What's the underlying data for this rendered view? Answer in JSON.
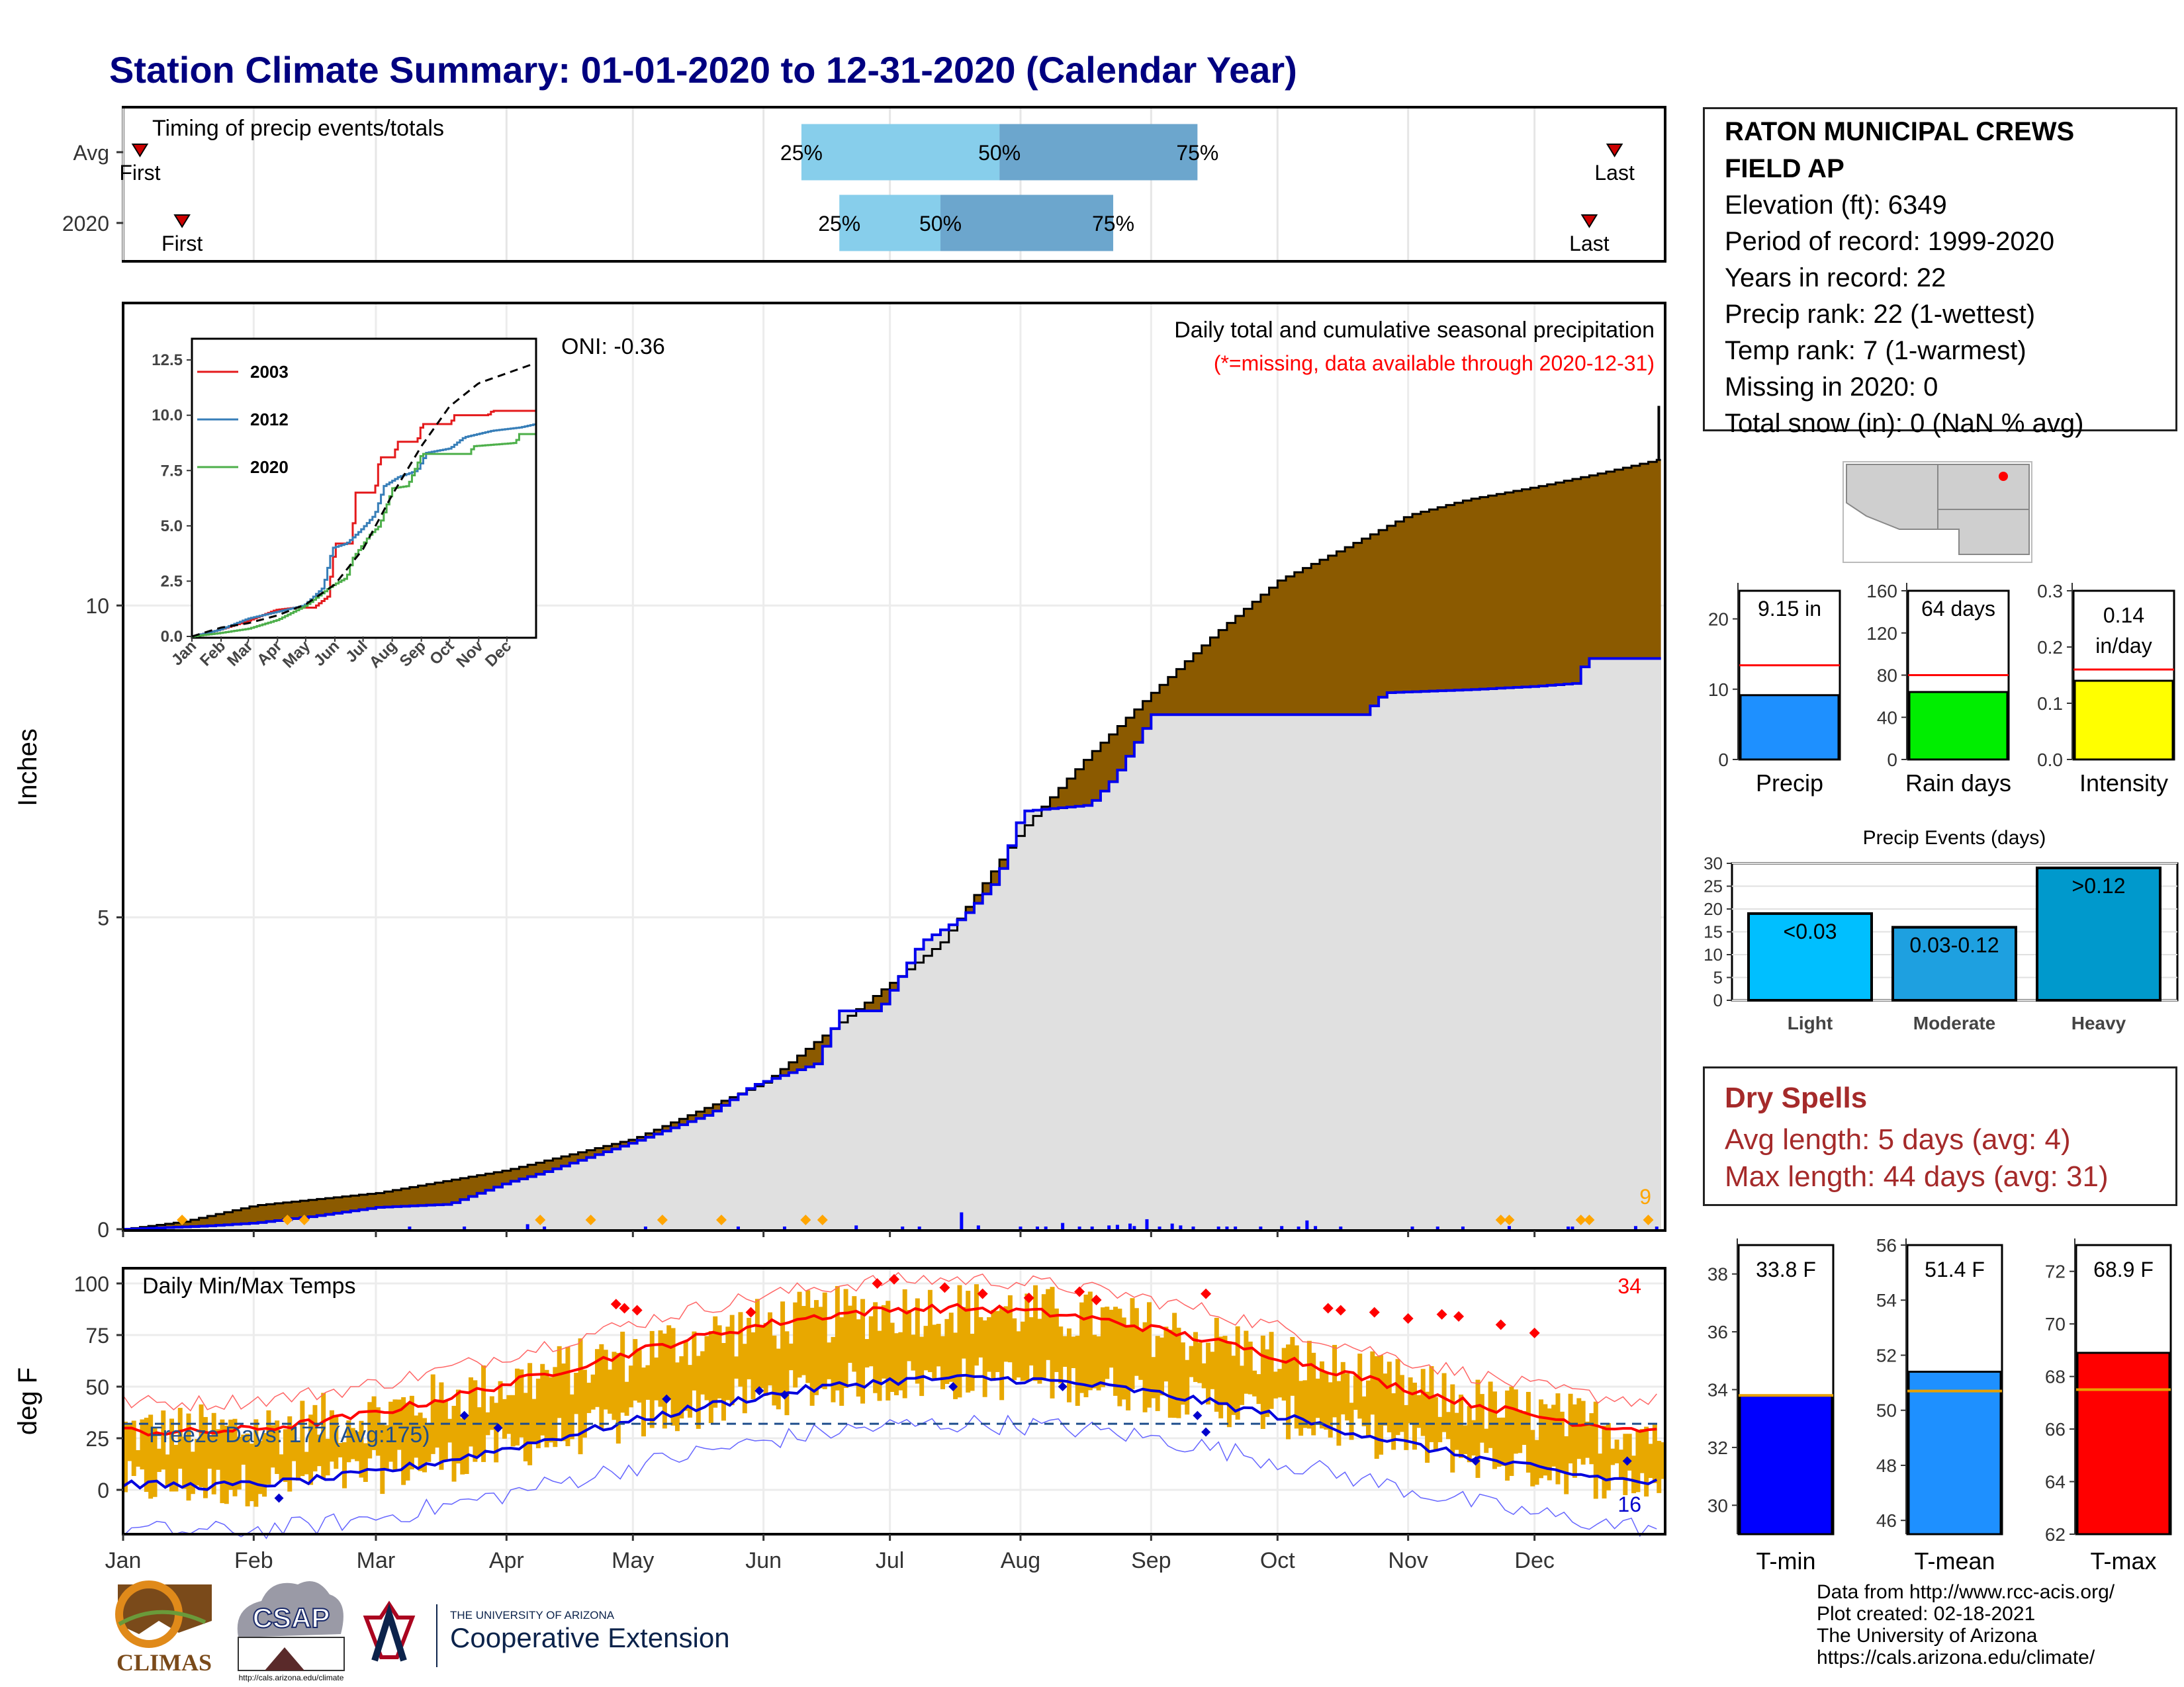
{
  "title": "Station Climate Summary: 01-01-2020 to 12-31-2020 (Calendar Year)",
  "timing": {
    "label": "Timing of precip events/totals",
    "rows": [
      {
        "name": "Avg",
        "first_label": "First",
        "last_label": "Last",
        "first_doy": 5,
        "last_doy": 355,
        "p25_doy": 162,
        "p50_doy": 209,
        "p75_doy": 256,
        "p25_label": "25%",
        "p50_label": "50%",
        "p75_label": "75%"
      },
      {
        "name": "2020",
        "first_label": "First",
        "last_label": "Last",
        "first_doy": 15,
        "last_doy": 349,
        "p25_doy": 171,
        "p50_doy": 195,
        "p75_doy": 236,
        "p25_label": "25%",
        "p50_label": "50%",
        "p75_label": "75%"
      }
    ],
    "colors": {
      "light": "#87ceeb",
      "dark": "#6ca6cd",
      "marker": "#cc0000"
    }
  },
  "precip_panel": {
    "ylabel": "Inches",
    "oni": "ONI: -0.36",
    "caption": "Daily total and cumulative seasonal precipitation",
    "missing_note": "(*=missing, data available through 2020-12-31)",
    "corner_count": "9",
    "yticks": [
      "0",
      "5",
      "10"
    ],
    "months": [
      "Jan",
      "Feb",
      "Mar",
      "Apr",
      "May",
      "Jun",
      "Jul",
      "Aug",
      "Sep",
      "Oct",
      "Nov",
      "Dec"
    ],
    "colors": {
      "deficit": "#8b5a00",
      "observed_fill": "#e0e0e0",
      "observed_line": "#0000ee",
      "bars": "#0000ff",
      "dots": "#ffa500"
    }
  },
  "inset": {
    "yticks": [
      "0.0",
      "2.5",
      "5.0",
      "7.5",
      "10.0",
      "12.5"
    ],
    "months": [
      "Jan",
      "Feb",
      "Mar",
      "Apr",
      "May",
      "Jun",
      "Jul",
      "Aug",
      "Sep",
      "Oct",
      "Nov",
      "Dec"
    ],
    "legend": [
      {
        "label": "2003",
        "color": "#e41a1c"
      },
      {
        "label": "2012",
        "color": "#377eb8"
      },
      {
        "label": "2020",
        "color": "#4daf4a"
      }
    ]
  },
  "station": {
    "name_line1": "RATON MUNICIPAL CREWS",
    "name_line2": "FIELD AP",
    "elevation": "Elevation (ft): 6349",
    "period": "Period of record: 1999-2020",
    "years": "Years in record: 22",
    "precip_rank": "Precip rank: 22 (1-wettest)",
    "temp_rank": "Temp rank: 7 (1-warmest)",
    "missing": "Missing in 2020: 0",
    "snow": "Total snow (in): 0 (NaN % avg)"
  },
  "mini_bars": [
    {
      "label": "Precip",
      "value_text": "9.15 in",
      "value": 9.15,
      "avg": 13.4,
      "ymax": 24,
      "yticks": [
        "0",
        "10",
        "20"
      ],
      "ytick_vals": [
        0,
        10,
        20
      ],
      "color": "#1e90ff"
    },
    {
      "label": "Rain days",
      "value_text": "64 days",
      "value": 64,
      "avg": 80,
      "ymax": 160,
      "yticks": [
        "0",
        "40",
        "80",
        "120",
        "160"
      ],
      "ytick_vals": [
        0,
        40,
        80,
        120,
        160
      ],
      "color": "#00ee00"
    },
    {
      "label": "Intensity",
      "value_text": "0.14 in/day",
      "value": 0.14,
      "avg": 0.16,
      "ymax": 0.3,
      "yticks": [
        "0.0",
        "0.1",
        "0.2",
        "0.3"
      ],
      "ytick_vals": [
        0,
        0.1,
        0.2,
        0.3
      ],
      "color": "#ffff00"
    }
  ],
  "events": {
    "title": "Precip Events (days)",
    "yticks": [
      "0",
      "5",
      "10",
      "15",
      "20",
      "25",
      "30"
    ],
    "bars": [
      {
        "label": "Light",
        "range": "<0.03",
        "value": 19,
        "color": "#00bfff"
      },
      {
        "label": "Moderate",
        "range": "0.03-0.12",
        "value": 16,
        "color": "#1ea0e0"
      },
      {
        "label": "Heavy",
        "range": ">0.12",
        "value": 29,
        "color": "#0099cc"
      }
    ]
  },
  "dry_spells": {
    "title": "Dry Spells",
    "avg_length": "Avg length: 5 days (avg: 4)",
    "max_length": "Max length: 44 days (avg: 31)"
  },
  "temp_panel": {
    "title": "Daily Min/Max Temps",
    "ylabel": "deg F",
    "freeze_label": "Freeze Days: 177 (Avg:175)",
    "count_hot": "34",
    "count_cold": "16",
    "yticks": [
      "0",
      "25",
      "50",
      "75",
      "100"
    ],
    "months": [
      "Jan",
      "Feb",
      "Mar",
      "Apr",
      "May",
      "Jun",
      "Jul",
      "Aug",
      "Sep",
      "Oct",
      "Nov",
      "Dec"
    ],
    "colors": {
      "bars": "#e8a800",
      "max_line": "#ff0000",
      "min_line": "#0000dd",
      "freeze": "#1f4e8c"
    }
  },
  "temp_bars": [
    {
      "label": "T-min",
      "value_text": "33.8 F",
      "value": 33.8,
      "avg": 33.8,
      "ymin": 29,
      "ymax": 39,
      "yticks": [
        "30",
        "32",
        "34",
        "36",
        "38"
      ],
      "ytick_vals": [
        30,
        32,
        34,
        36,
        38
      ],
      "color": "#0000ff"
    },
    {
      "label": "T-mean",
      "value_text": "51.4 F",
      "value": 51.4,
      "avg": 50.7,
      "ymin": 45.5,
      "ymax": 56,
      "yticks": [
        "46",
        "48",
        "50",
        "52",
        "54",
        "56"
      ],
      "ytick_vals": [
        46,
        48,
        50,
        52,
        54,
        56
      ],
      "color": "#1e90ff"
    },
    {
      "label": "T-max",
      "value_text": "68.9 F",
      "value": 68.9,
      "avg": 67.5,
      "ymin": 62,
      "ymax": 73,
      "yticks": [
        "62",
        "64",
        "66",
        "68",
        "70",
        "72"
      ],
      "ytick_vals": [
        62,
        64,
        66,
        68,
        70,
        72
      ],
      "color": "#ff0000"
    }
  ],
  "logos": {
    "climas": "CLIMAS",
    "csap": "CSAP",
    "csap_url": "http://cals.arizona.edu/climate",
    "ua_small": "THE UNIVERSITY OF ARIZONA",
    "ua_big": "Cooperative Extension"
  },
  "credits": {
    "line1": "Data from http://www.rcc-acis.org/",
    "line2": "Plot created: 02-18-2021",
    "line3": "The University of Arizona",
    "line4": "https://cals.arizona.edu/climate/"
  }
}
